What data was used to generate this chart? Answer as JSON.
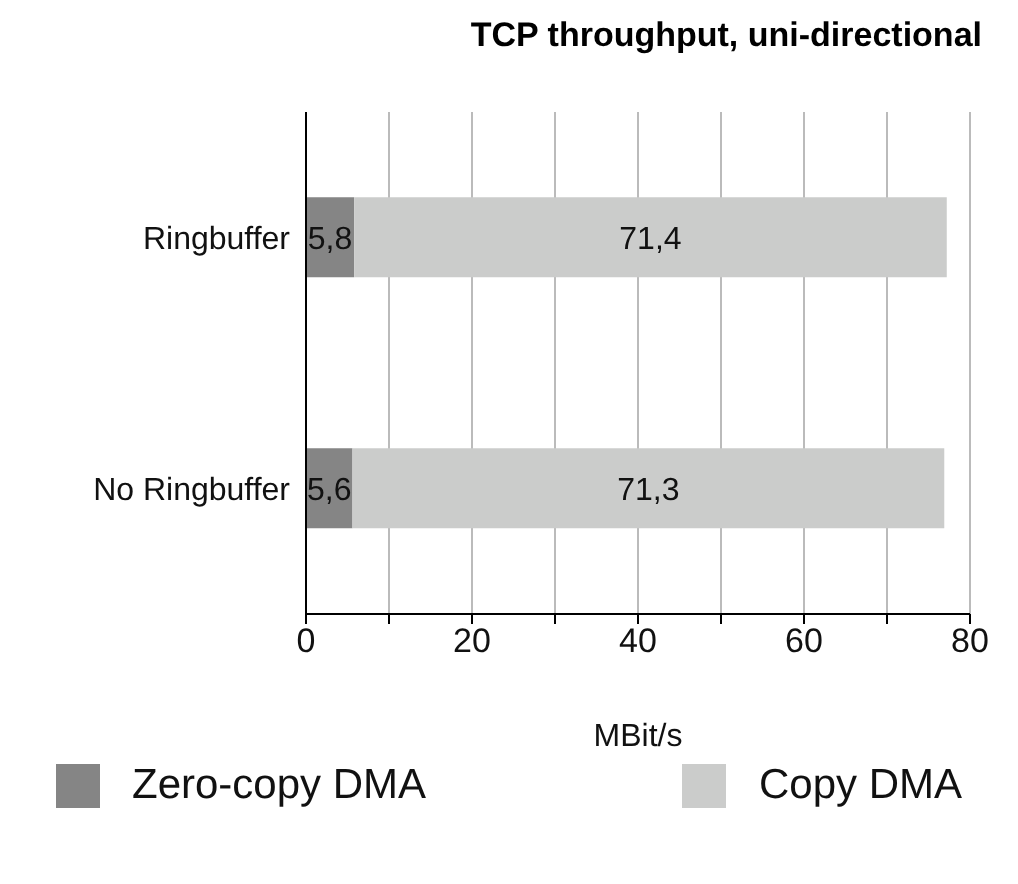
{
  "chart_data": {
    "type": "bar",
    "title": "TCP throughput, uni-directional",
    "xlabel": "MBit/s",
    "orientation": "horizontal",
    "stacked": true,
    "categories": [
      "Ringbuffer",
      "No Ringbuffer"
    ],
    "series": [
      {
        "name": "Zero-copy DMA",
        "color": "#858585",
        "values": [
          5.8,
          5.6
        ],
        "value_labels": [
          "5,8",
          "5,6"
        ]
      },
      {
        "name": "Copy DMA",
        "color": "#cbcccb",
        "values": [
          71.4,
          71.3
        ],
        "value_labels": [
          "71,4",
          "71,3"
        ]
      }
    ],
    "xlim": [
      0,
      80
    ],
    "xticks": [
      0,
      {
        "value": 10,
        "label": null
      },
      20,
      {
        "value": 30,
        "label": null
      },
      40,
      {
        "value": 50,
        "label": null
      },
      60,
      {
        "value": 70,
        "label": null
      },
      80
    ],
    "grid": "x",
    "legend": "bottom"
  }
}
